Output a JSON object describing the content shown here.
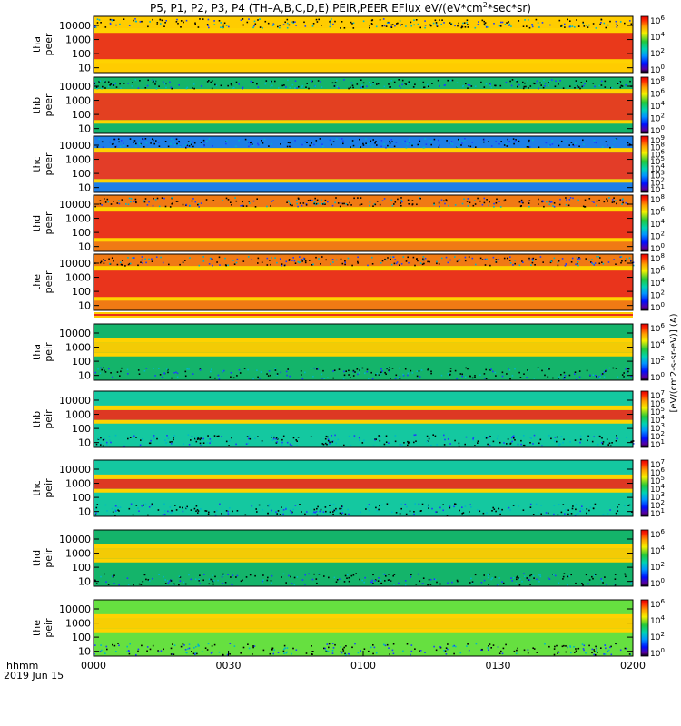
{
  "chart_data": {
    "type": "heatmap",
    "title": "P5, P1, P2, P3, P4 (TH-A,B,C,D,E) PEIR,PEER EFlux eV/(eV*cm^2*sec*sr)",
    "title_parts": [
      "P5, P1, P2, P3, P4 (TH–A,B,C,D,E) PEIR,PEER EFlux eV/(eV*cm",
      "2",
      "*sec*sr)"
    ],
    "x_ticks": [
      "0000",
      "0030",
      "0100",
      "0130",
      "0200"
    ],
    "x_tick_minutes": [
      0,
      30,
      60,
      90,
      120
    ],
    "x_range_minutes": [
      0,
      120
    ],
    "x_corner_label": "hhmm",
    "date_label": "2019 Jun 15",
    "y_ticks": [
      "10",
      "100",
      "1000",
      "10000"
    ],
    "y_tick_values": [
      10,
      100,
      1000,
      10000
    ],
    "y_scale": "log",
    "colorbar_scale": "log",
    "colorbar_label": "[eV/(cm2-s-sr-eV)] (A)",
    "panels": [
      {
        "probe": "tha",
        "species": "peer",
        "ylabel_top": "tha",
        "ylabel_bottom": "peer",
        "cbar_ticks": [
          {
            "mantissa": "10",
            "exp": "6"
          },
          {
            "mantissa": "10",
            "exp": "4"
          },
          {
            "mantissa": "10",
            "exp": "2"
          },
          {
            "mantissa": "10",
            "exp": "0"
          }
        ],
        "dominant_color": "#e8301c",
        "bg_color": "#ffcc00"
      },
      {
        "probe": "thb",
        "species": "peer",
        "ylabel_top": "thb",
        "ylabel_bottom": "peer",
        "cbar_ticks": [
          {
            "mantissa": "10",
            "exp": "8"
          },
          {
            "mantissa": "10",
            "exp": "6"
          },
          {
            "mantissa": "10",
            "exp": "4"
          },
          {
            "mantissa": "10",
            "exp": "2"
          },
          {
            "mantissa": "10",
            "exp": "0"
          }
        ],
        "dominant_color": "#ee3a1e",
        "bg_color": "#14b46a"
      },
      {
        "probe": "thc",
        "species": "peer",
        "ylabel_top": "thc",
        "ylabel_bottom": "peer",
        "cbar_ticks": [
          {
            "mantissa": "10",
            "exp": "9"
          },
          {
            "mantissa": "10",
            "exp": "8"
          },
          {
            "mantissa": "10",
            "exp": "6"
          },
          {
            "mantissa": "10",
            "exp": "5"
          },
          {
            "mantissa": "10",
            "exp": "4"
          },
          {
            "mantissa": "10",
            "exp": "3"
          },
          {
            "mantissa": "10",
            "exp": "2"
          },
          {
            "mantissa": "10",
            "exp": "1"
          }
        ],
        "dominant_color": "#ee3a1e",
        "bg_color": "#1e7fe6"
      },
      {
        "probe": "thd",
        "species": "peer",
        "ylabel_top": "thd",
        "ylabel_bottom": "peer",
        "cbar_ticks": [
          {
            "mantissa": "10",
            "exp": "8"
          },
          {
            "mantissa": "10",
            "exp": "6"
          },
          {
            "mantissa": "10",
            "exp": "4"
          },
          {
            "mantissa": "10",
            "exp": "2"
          },
          {
            "mantissa": "10",
            "exp": "0"
          }
        ],
        "dominant_color": "#e8301c",
        "bg_color": "#f07a14"
      },
      {
        "probe": "the",
        "species": "peer",
        "ylabel_top": "the",
        "ylabel_bottom": "peer",
        "cbar_ticks": [
          {
            "mantissa": "10",
            "exp": "8"
          },
          {
            "mantissa": "10",
            "exp": "6"
          },
          {
            "mantissa": "10",
            "exp": "4"
          },
          {
            "mantissa": "10",
            "exp": "2"
          },
          {
            "mantissa": "10",
            "exp": "0"
          }
        ],
        "dominant_color": "#e8301c",
        "bg_color": "#f07a14"
      },
      {
        "probe": "tha",
        "species": "peir",
        "ylabel_top": "tha",
        "ylabel_bottom": "peir",
        "cbar_ticks": [
          {
            "mantissa": "10",
            "exp": "6"
          },
          {
            "mantissa": "10",
            "exp": "4"
          },
          {
            "mantissa": "10",
            "exp": "2"
          },
          {
            "mantissa": "10",
            "exp": "0"
          }
        ],
        "dominant_color": "#ffcc00",
        "bg_color": "#14b46a"
      },
      {
        "probe": "thb",
        "species": "peir",
        "ylabel_top": "thb",
        "ylabel_bottom": "peir",
        "cbar_ticks": [
          {
            "mantissa": "10",
            "exp": "7"
          },
          {
            "mantissa": "10",
            "exp": "6"
          },
          {
            "mantissa": "10",
            "exp": "5"
          },
          {
            "mantissa": "10",
            "exp": "4"
          },
          {
            "mantissa": "10",
            "exp": "3"
          },
          {
            "mantissa": "10",
            "exp": "2"
          },
          {
            "mantissa": "10",
            "exp": "1"
          }
        ],
        "dominant_color": "#e8301c",
        "bg_color": "#14c8a0"
      },
      {
        "probe": "thc",
        "species": "peir",
        "ylabel_top": "thc",
        "ylabel_bottom": "peir",
        "cbar_ticks": [
          {
            "mantissa": "10",
            "exp": "7"
          },
          {
            "mantissa": "10",
            "exp": "6"
          },
          {
            "mantissa": "10",
            "exp": "5"
          },
          {
            "mantissa": "10",
            "exp": "4"
          },
          {
            "mantissa": "10",
            "exp": "3"
          },
          {
            "mantissa": "10",
            "exp": "2"
          },
          {
            "mantissa": "10",
            "exp": "1"
          }
        ],
        "dominant_color": "#e8301c",
        "bg_color": "#14c8a0"
      },
      {
        "probe": "thd",
        "species": "peir",
        "ylabel_top": "thd",
        "ylabel_bottom": "peir",
        "cbar_ticks": [
          {
            "mantissa": "10",
            "exp": "6"
          },
          {
            "mantissa": "10",
            "exp": "4"
          },
          {
            "mantissa": "10",
            "exp": "2"
          },
          {
            "mantissa": "10",
            "exp": "0"
          }
        ],
        "dominant_color": "#ffcc00",
        "bg_color": "#14b46a"
      },
      {
        "probe": "the",
        "species": "peir",
        "ylabel_top": "the",
        "ylabel_bottom": "peir",
        "cbar_ticks": [
          {
            "mantissa": "10",
            "exp": "6"
          },
          {
            "mantissa": "10",
            "exp": "4"
          },
          {
            "mantissa": "10",
            "exp": "2"
          },
          {
            "mantissa": "10",
            "exp": "0"
          }
        ],
        "dominant_color": "#ffcc00",
        "bg_color": "#66e040"
      }
    ]
  }
}
